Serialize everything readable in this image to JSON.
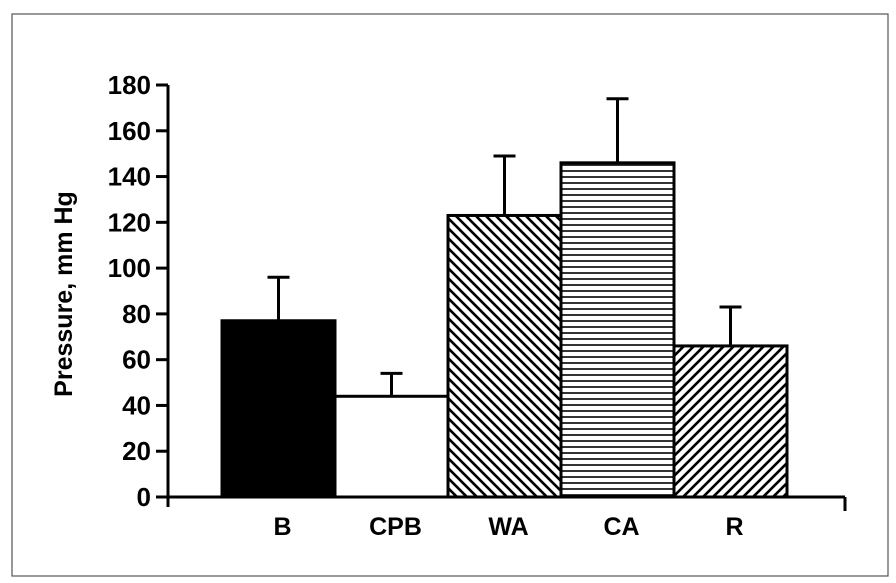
{
  "chart_data": {
    "type": "bar",
    "title": "",
    "xlabel": "",
    "ylabel": "Pressure, mm Hg",
    "categories": [
      "B",
      "CPB",
      "WA",
      "CA",
      "R"
    ],
    "values": [
      77,
      44,
      123,
      146,
      66
    ],
    "error_upper": [
      96,
      54,
      149,
      174,
      83
    ],
    "fills": [
      "solid-black",
      "white",
      "diagonal-hatch-backslash",
      "horizontal-lines",
      "diagonal-hatch-slash"
    ],
    "ylim": [
      0,
      180
    ],
    "yticks": [
      0,
      20,
      40,
      60,
      80,
      100,
      120,
      140,
      160,
      180
    ],
    "grid": false,
    "legend": "none"
  }
}
